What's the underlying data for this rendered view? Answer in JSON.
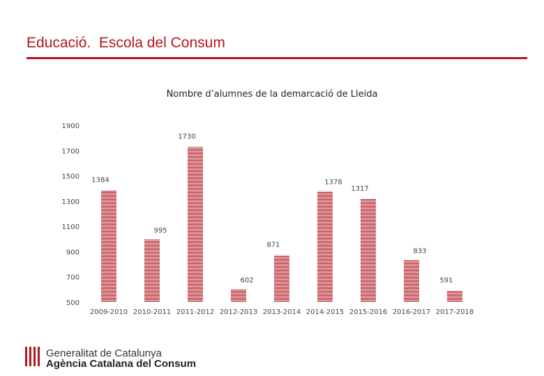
{
  "slide": {
    "title": "Educació.  Escola del Consum"
  },
  "logo": {
    "line1": "Generalitat de Catalunya",
    "line2": "Agència Catalana del Consum",
    "icon": "senyera-icon"
  },
  "colors": {
    "accent": "#b2151f",
    "bar": "#b2151f"
  },
  "chart_data": {
    "type": "bar",
    "title": "Nombre d’alumnes de la demarcació de Lleida",
    "categories": [
      "2009-2010",
      "2010-2011",
      "2011-2012",
      "2012-2013",
      "2013-2014",
      "2014-2015",
      "2015-2016",
      "2016-2017",
      "2017-2018"
    ],
    "values": [
      1384,
      995,
      1730,
      602,
      871,
      1378,
      1317,
      833,
      591
    ],
    "yticks": [
      500,
      700,
      900,
      1100,
      1300,
      1500,
      1700,
      1900
    ],
    "ylim": [
      500,
      1900
    ],
    "xlabel": "",
    "ylabel": "",
    "grid": false
  }
}
